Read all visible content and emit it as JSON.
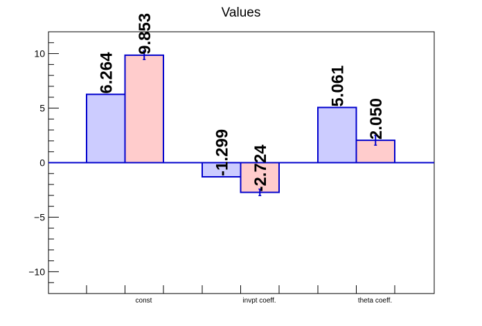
{
  "chart_data": {
    "type": "bar",
    "title": "Values",
    "xlabel": "",
    "ylabel": "",
    "categories": [
      "const",
      "invpt coeff.",
      "theta coeff."
    ],
    "ylim": [
      -12,
      12
    ],
    "yticks_major": [
      -10,
      -5,
      0,
      5,
      10
    ],
    "ytick_labels": [
      "−10",
      "−5",
      "0",
      "5",
      "10"
    ],
    "grid": false,
    "legend": "none",
    "series": [
      {
        "values": [
          6.264,
          -1.299,
          5.061
        ],
        "labels": [
          "6.264",
          "-1.299",
          "5.061"
        ],
        "color": "#ccccff",
        "edge_color": "#0000cc"
      },
      {
        "values": [
          9.853,
          -2.724,
          2.05
        ],
        "labels": [
          "9.853",
          "-2.724",
          "2.050"
        ],
        "errors": [
          0.4,
          0.3,
          0.45
        ],
        "color": "#ffcccc",
        "edge_color": "#0000cc"
      }
    ]
  }
}
